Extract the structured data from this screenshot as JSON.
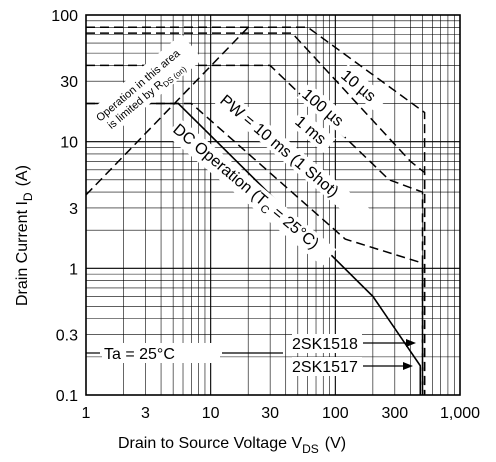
{
  "chart_data": {
    "type": "line",
    "xscale": "log",
    "yscale": "log",
    "xlim": [
      1,
      1000
    ],
    "ylim": [
      0.1,
      100
    ],
    "grid": true,
    "xlabel": "Drain to Source Voltage  V",
    "xlabel_sub": "DS",
    "xlabel_unit": "(V)",
    "ylabel": "Drain Current  I",
    "ylabel_sub": "D",
    "ylabel_unit": "(A)",
    "x_ticks": [
      {
        "value": 1,
        "label": "1"
      },
      {
        "value": 3,
        "label": "3"
      },
      {
        "value": 10,
        "label": "10"
      },
      {
        "value": 30,
        "label": "30"
      },
      {
        "value": 100,
        "label": "100"
      },
      {
        "value": 300,
        "label": "300"
      },
      {
        "value": 1000,
        "label": "1,000"
      }
    ],
    "y_ticks": [
      {
        "value": 0.1,
        "label": "0.1"
      },
      {
        "value": 0.3,
        "label": "0.3"
      },
      {
        "value": 1,
        "label": "1"
      },
      {
        "value": 3,
        "label": "3"
      },
      {
        "value": 10,
        "label": "10"
      },
      {
        "value": 30,
        "label": "30"
      },
      {
        "value": 100,
        "label": "100"
      }
    ],
    "series": [
      {
        "name": "Operation in this area is limited by R DS(on)",
        "style": "dashed",
        "points": [
          [
            1,
            3.8
          ],
          [
            20,
            80
          ]
        ]
      },
      {
        "name": "10 µs",
        "style": "dashed",
        "points": [
          [
            1,
            80
          ],
          [
            20,
            80
          ],
          [
            60,
            80
          ],
          [
            520,
            17
          ],
          [
            520,
            0.1
          ]
        ]
      },
      {
        "name": "100 µs",
        "style": "dashed",
        "points": [
          [
            1,
            72
          ],
          [
            45,
            72
          ],
          [
            400,
            7
          ],
          [
            520,
            5.7
          ],
          [
            520,
            0.1
          ]
        ]
      },
      {
        "name": "1 ms",
        "style": "dashed",
        "points": [
          [
            1,
            40
          ],
          [
            30,
            40
          ],
          [
            270,
            5
          ],
          [
            500,
            4
          ],
          [
            500,
            0.1
          ]
        ]
      },
      {
        "name": "PW = 10 ms (1 Shot)",
        "style": "dashed",
        "points": [
          [
            1,
            20
          ],
          [
            7,
            20
          ],
          [
            120,
            1.7
          ],
          [
            500,
            1.1
          ],
          [
            500,
            0.1
          ]
        ]
      },
      {
        "name": "DC Operation (T C = 25°C)",
        "style": "solid",
        "points": [
          [
            1,
            20
          ],
          [
            5.5,
            20
          ],
          [
            200,
            0.6
          ],
          [
            480,
            0.17
          ],
          [
            480,
            0.1
          ]
        ]
      }
    ],
    "series_labels": {
      "rds_line1": "Operation in this area",
      "rds_line2": "is limited by R",
      "rds_sub": "DS (on)",
      "us10": "10 µs",
      "us100": "100 µs",
      "ms1": "1 ms",
      "pw": "PW = 10 ms (1 Shot)",
      "dc_main": "DC Operation (T",
      "dc_sub": "C",
      "dc_end": " = 25°C)"
    },
    "annotations": {
      "ta": "Ta = 25°C",
      "part1": "2SK1518",
      "part2": "2SK1517"
    }
  }
}
